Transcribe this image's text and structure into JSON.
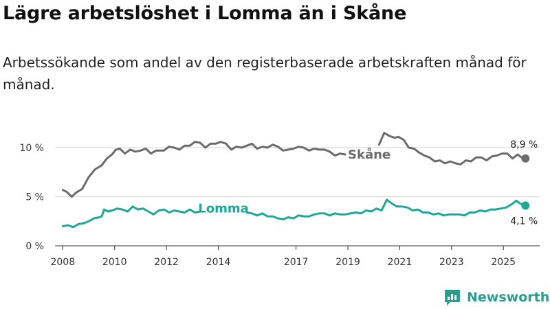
{
  "header": {
    "title": "Lägre arbetslöshet i Lomma än i Skåne",
    "subtitle": "Arbetssökande som andel av den registerbaserade arbetskraften månad för månad."
  },
  "brand": {
    "name": "Newsworthy"
  },
  "colors": {
    "skane": "#6b6b6b",
    "lomma": "#1ba899",
    "grid": "#d9d9d9",
    "axis": "#333333"
  },
  "chart_data": {
    "type": "line",
    "title": "Lägre arbetslöshet i Lomma än i Skåne",
    "xlabel": "",
    "ylabel": "",
    "ylim": [
      0,
      12.8
    ],
    "xlim": [
      2007.7,
      2026.4
    ],
    "yticks": [
      {
        "value": 0,
        "label": "0 %"
      },
      {
        "value": 5,
        "label": "5 %"
      },
      {
        "value": 10,
        "label": "10 %"
      }
    ],
    "xticks": [
      {
        "value": 2008,
        "label": "2008"
      },
      {
        "value": 2010,
        "label": "2010"
      },
      {
        "value": 2012,
        "label": "2012"
      },
      {
        "value": 2014,
        "label": "2014"
      },
      {
        "value": 2017,
        "label": "2017"
      },
      {
        "value": 2019,
        "label": "2019"
      },
      {
        "value": 2021,
        "label": "2021"
      },
      {
        "value": 2023,
        "label": "2023"
      },
      {
        "value": 2025,
        "label": "2025"
      }
    ],
    "series": [
      {
        "name": "Skåne",
        "key": "skane",
        "end_label": "8,9 %",
        "end_value": 8.9,
        "segments": [
          [
            [
              2008.0,
              5.7
            ],
            [
              2008.15,
              5.5
            ],
            [
              2008.35,
              5.0
            ],
            [
              2008.5,
              5.4
            ],
            [
              2008.75,
              5.8
            ],
            [
              2009.0,
              7.0
            ],
            [
              2009.25,
              7.8
            ],
            [
              2009.5,
              8.2
            ],
            [
              2009.7,
              8.9
            ],
            [
              2009.9,
              9.3
            ],
            [
              2010.05,
              9.8
            ],
            [
              2010.2,
              9.9
            ],
            [
              2010.4,
              9.4
            ],
            [
              2010.6,
              9.8
            ],
            [
              2010.8,
              9.6
            ],
            [
              2011.0,
              9.7
            ],
            [
              2011.2,
              9.9
            ],
            [
              2011.4,
              9.4
            ],
            [
              2011.6,
              9.7
            ],
            [
              2011.9,
              9.7
            ],
            [
              2012.1,
              10.1
            ],
            [
              2012.3,
              10.0
            ],
            [
              2012.5,
              9.8
            ],
            [
              2012.7,
              10.2
            ],
            [
              2012.9,
              10.2
            ],
            [
              2013.1,
              10.6
            ],
            [
              2013.3,
              10.5
            ],
            [
              2013.5,
              10.0
            ],
            [
              2013.7,
              10.4
            ],
            [
              2013.9,
              10.4
            ],
            [
              2014.1,
              10.6
            ],
            [
              2014.3,
              10.4
            ],
            [
              2014.5,
              9.8
            ],
            [
              2014.7,
              10.1
            ],
            [
              2014.9,
              10.0
            ],
            [
              2015.1,
              10.2
            ],
            [
              2015.3,
              10.4
            ],
            [
              2015.5,
              9.9
            ],
            [
              2015.7,
              10.1
            ],
            [
              2015.9,
              10.0
            ],
            [
              2016.1,
              10.3
            ],
            [
              2016.3,
              10.1
            ],
            [
              2016.5,
              9.7
            ],
            [
              2016.7,
              9.8
            ],
            [
              2016.9,
              9.9
            ],
            [
              2017.1,
              10.1
            ],
            [
              2017.3,
              10.0
            ],
            [
              2017.5,
              9.7
            ],
            [
              2017.7,
              9.9
            ],
            [
              2017.9,
              9.8
            ],
            [
              2018.1,
              9.8
            ],
            [
              2018.3,
              9.6
            ],
            [
              2018.5,
              9.2
            ],
            [
              2018.7,
              9.4
            ],
            [
              2018.9,
              9.3
            ]
          ],
          [
            [
              2020.2,
              10.3
            ],
            [
              2020.4,
              11.5
            ],
            [
              2020.6,
              11.2
            ],
            [
              2020.8,
              11.0
            ],
            [
              2020.95,
              11.1
            ],
            [
              2021.15,
              10.8
            ],
            [
              2021.35,
              10.0
            ],
            [
              2021.55,
              9.9
            ],
            [
              2021.75,
              9.5
            ],
            [
              2021.95,
              9.2
            ],
            [
              2022.15,
              9.0
            ],
            [
              2022.35,
              8.6
            ],
            [
              2022.55,
              8.7
            ],
            [
              2022.75,
              8.4
            ],
            [
              2022.95,
              8.6
            ],
            [
              2023.15,
              8.4
            ],
            [
              2023.35,
              8.3
            ],
            [
              2023.55,
              8.7
            ],
            [
              2023.75,
              8.6
            ],
            [
              2023.95,
              9.0
            ],
            [
              2024.15,
              9.0
            ],
            [
              2024.35,
              8.7
            ],
            [
              2024.55,
              9.1
            ],
            [
              2024.75,
              9.2
            ],
            [
              2024.95,
              9.4
            ],
            [
              2025.15,
              9.4
            ],
            [
              2025.35,
              8.9
            ],
            [
              2025.55,
              9.3
            ],
            [
              2025.7,
              9.0
            ],
            [
              2025.85,
              8.9
            ]
          ]
        ]
      },
      {
        "name": "Lomma",
        "key": "lomma",
        "end_label": "4,1 %",
        "end_value": 4.1,
        "segments": [
          [
            [
              2008.0,
              2.0
            ],
            [
              2008.2,
              2.1
            ],
            [
              2008.4,
              1.9
            ],
            [
              2008.6,
              2.2
            ],
            [
              2008.8,
              2.3
            ],
            [
              2009.0,
              2.5
            ],
            [
              2009.2,
              2.8
            ],
            [
              2009.4,
              2.9
            ],
            [
              2009.5,
              3.0
            ],
            [
              2009.6,
              3.7
            ],
            [
              2009.75,
              3.5
            ],
            [
              2009.9,
              3.6
            ],
            [
              2010.1,
              3.8
            ],
            [
              2010.3,
              3.7
            ],
            [
              2010.5,
              3.5
            ],
            [
              2010.7,
              4.0
            ],
            [
              2010.9,
              3.7
            ],
            [
              2011.1,
              3.8
            ],
            [
              2011.3,
              3.5
            ],
            [
              2011.5,
              3.2
            ],
            [
              2011.7,
              3.6
            ],
            [
              2011.9,
              3.7
            ],
            [
              2012.1,
              3.4
            ],
            [
              2012.3,
              3.6
            ],
            [
              2012.5,
              3.5
            ],
            [
              2012.7,
              3.4
            ],
            [
              2012.9,
              3.7
            ],
            [
              2013.1,
              3.4
            ],
            [
              2013.3,
              3.5
            ]
          ],
          [
            [
              2015.1,
              3.4
            ],
            [
              2015.3,
              3.3
            ],
            [
              2015.5,
              3.1
            ],
            [
              2015.7,
              3.3
            ],
            [
              2015.9,
              3.0
            ],
            [
              2016.1,
              3.0
            ],
            [
              2016.3,
              2.8
            ],
            [
              2016.5,
              2.7
            ],
            [
              2016.7,
              2.9
            ],
            [
              2016.9,
              2.8
            ],
            [
              2017.1,
              3.1
            ],
            [
              2017.3,
              3.0
            ],
            [
              2017.5,
              3.0
            ],
            [
              2017.7,
              3.2
            ],
            [
              2017.9,
              3.3
            ],
            [
              2018.1,
              3.3
            ],
            [
              2018.3,
              3.1
            ],
            [
              2018.5,
              3.3
            ],
            [
              2018.7,
              3.2
            ],
            [
              2018.9,
              3.2
            ],
            [
              2019.1,
              3.3
            ],
            [
              2019.3,
              3.4
            ],
            [
              2019.5,
              3.3
            ],
            [
              2019.7,
              3.6
            ],
            [
              2019.9,
              3.5
            ],
            [
              2020.1,
              3.8
            ],
            [
              2020.3,
              3.6
            ],
            [
              2020.5,
              4.7
            ],
            [
              2020.7,
              4.3
            ],
            [
              2020.9,
              4.0
            ],
            [
              2021.1,
              4.0
            ],
            [
              2021.3,
              3.9
            ],
            [
              2021.5,
              3.6
            ],
            [
              2021.7,
              3.7
            ],
            [
              2021.9,
              3.4
            ],
            [
              2022.1,
              3.4
            ],
            [
              2022.3,
              3.2
            ],
            [
              2022.5,
              3.3
            ],
            [
              2022.7,
              3.1
            ],
            [
              2022.9,
              3.2
            ],
            [
              2023.1,
              3.2
            ],
            [
              2023.3,
              3.2
            ],
            [
              2023.5,
              3.1
            ],
            [
              2023.7,
              3.4
            ],
            [
              2023.9,
              3.4
            ],
            [
              2024.1,
              3.6
            ],
            [
              2024.3,
              3.5
            ],
            [
              2024.5,
              3.7
            ],
            [
              2024.7,
              3.7
            ],
            [
              2024.9,
              3.8
            ],
            [
              2025.1,
              3.9
            ],
            [
              2025.3,
              4.2
            ],
            [
              2025.5,
              4.6
            ],
            [
              2025.65,
              4.3
            ],
            [
              2025.85,
              4.1
            ]
          ]
        ]
      }
    ]
  }
}
